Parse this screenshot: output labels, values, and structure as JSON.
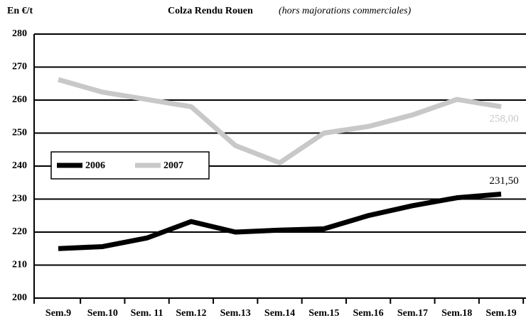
{
  "chart_data": {
    "type": "line",
    "title": "Colza Rendu Rouen",
    "subtitle": "(hors majorations commerciales)",
    "y_label": "En €/t",
    "categories": [
      "Sem.9",
      "Sem.10",
      "Sem. 11",
      "Sem.12",
      "Sem.13",
      "Sem.14",
      "Sem.15",
      "Sem.16",
      "Sem.17",
      "Sem.18",
      "Sem.19"
    ],
    "series": [
      {
        "name": "2006",
        "color": "#000000",
        "values": [
          215,
          215.6,
          218.2,
          223.2,
          220,
          220.6,
          221,
          225,
          228,
          230.4,
          231.5
        ],
        "value_labels": [
          null,
          null,
          null,
          null,
          null,
          null,
          null,
          null,
          null,
          null,
          "231,50"
        ]
      },
      {
        "name": "2007",
        "color": "#c8c8c8",
        "values": [
          266.2,
          262.4,
          260.2,
          258,
          246.2,
          241,
          250,
          252,
          255.5,
          260.2,
          258
        ],
        "value_labels": [
          null,
          null,
          null,
          null,
          null,
          null,
          null,
          null,
          null,
          null,
          "258,00"
        ]
      }
    ],
    "ylim": [
      200,
      280
    ],
    "yticks": [
      200,
      210,
      220,
      230,
      240,
      250,
      260,
      270,
      280
    ],
    "grid": true,
    "legend": "left"
  }
}
